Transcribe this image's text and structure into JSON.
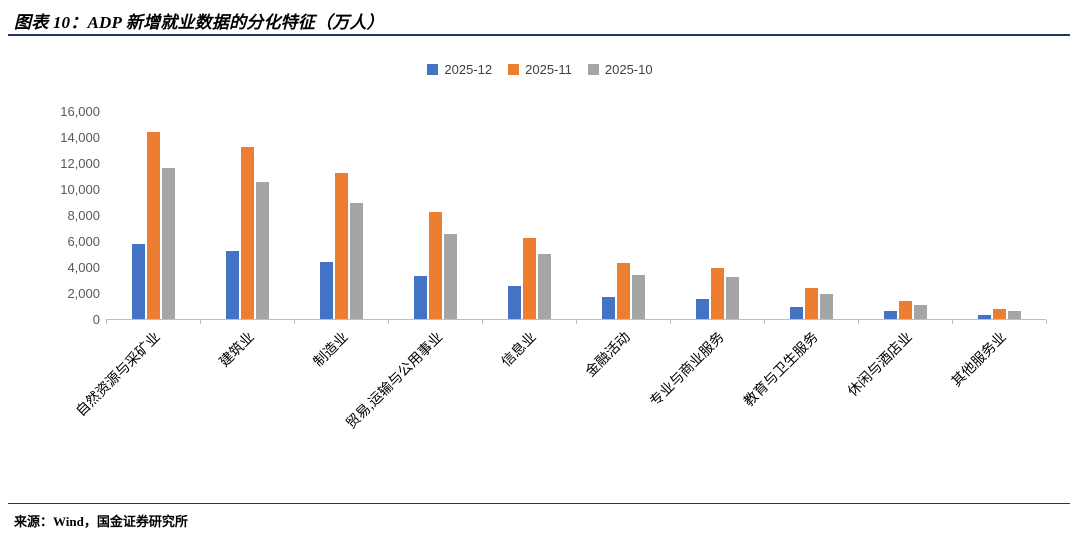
{
  "header": {
    "title": "图表 10：ADP 新增就业数据的分化特征（万人）"
  },
  "footer": {
    "source": "来源：Wind，国金证券研究所"
  },
  "colors": {
    "series_2025_12": "#4472C4",
    "series_2025_11": "#ED7D31",
    "series_2025_10": "#A5A5A5",
    "rule": "#1F3864",
    "axis": "#BFBFBF"
  },
  "chart_data": {
    "type": "bar",
    "title": "图表 10：ADP 新增就业数据的分化特征（万人）",
    "categories": [
      "自然资源与采矿业",
      "建筑业",
      "制造业",
      "贸易,运输与公用事业",
      "信息业",
      "金融活动",
      "专业与商业服务",
      "教育与卫生服务",
      "休闲与酒店业",
      "其他服务业"
    ],
    "series": [
      {
        "name": "2025-12",
        "color": "#4472C4",
        "values": [
          5800,
          5200,
          4400,
          3300,
          2500,
          1700,
          1500,
          900,
          600,
          300
        ]
      },
      {
        "name": "2025-11",
        "color": "#ED7D31",
        "values": [
          14400,
          13200,
          11200,
          8200,
          6200,
          4300,
          3900,
          2400,
          1400,
          800
        ]
      },
      {
        "name": "2025-10",
        "color": "#A5A5A5",
        "values": [
          11600,
          10500,
          8900,
          6500,
          5000,
          3400,
          3200,
          1900,
          1100,
          650
        ]
      }
    ],
    "xlabel": "",
    "ylabel": "",
    "ylim": [
      0,
      16000
    ],
    "ytick_step": 2000,
    "ytick_labels": [
      "0",
      "2,000",
      "4,000",
      "6,000",
      "8,000",
      "10,000",
      "12,000",
      "14,000",
      "16,000"
    ],
    "grid": false,
    "legend_position": "top"
  }
}
